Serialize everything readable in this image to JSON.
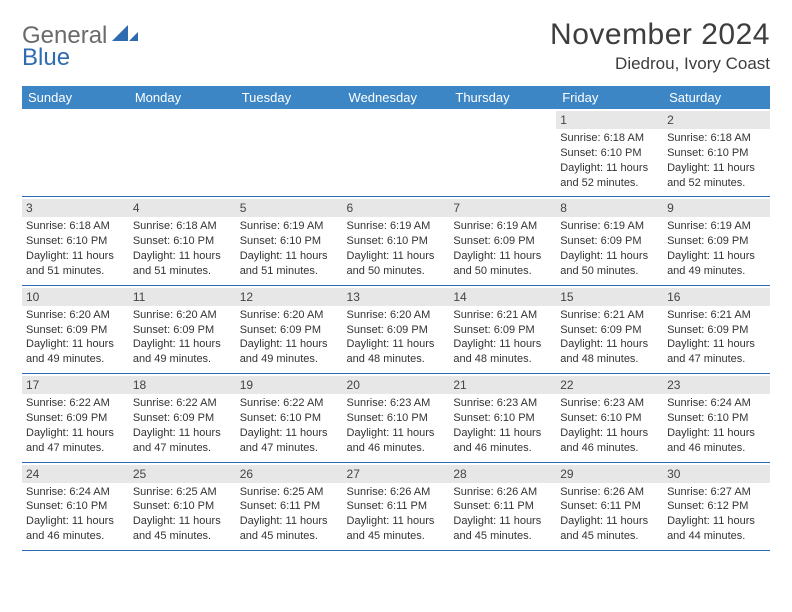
{
  "logo": {
    "line1": "General",
    "line2": "Blue",
    "mark_color": "#2f6bb1"
  },
  "title": "November 2024",
  "location": "Diedrou, Ivory Coast",
  "colors": {
    "header_bg": "#3d86c6",
    "header_text": "#ffffff",
    "daynum_bg": "#e7e7e7",
    "row_border": "#2f6bb1",
    "body_text": "#333333",
    "logo_general": "#6a6a6a",
    "logo_blue": "#2f6bb1"
  },
  "weekdays": [
    "Sunday",
    "Monday",
    "Tuesday",
    "Wednesday",
    "Thursday",
    "Friday",
    "Saturday"
  ],
  "weeks": [
    [
      null,
      null,
      null,
      null,
      null,
      {
        "n": "1",
        "sunrise": "6:18 AM",
        "sunset": "6:10 PM",
        "daylight": "11 hours and 52 minutes."
      },
      {
        "n": "2",
        "sunrise": "6:18 AM",
        "sunset": "6:10 PM",
        "daylight": "11 hours and 52 minutes."
      }
    ],
    [
      {
        "n": "3",
        "sunrise": "6:18 AM",
        "sunset": "6:10 PM",
        "daylight": "11 hours and 51 minutes."
      },
      {
        "n": "4",
        "sunrise": "6:18 AM",
        "sunset": "6:10 PM",
        "daylight": "11 hours and 51 minutes."
      },
      {
        "n": "5",
        "sunrise": "6:19 AM",
        "sunset": "6:10 PM",
        "daylight": "11 hours and 51 minutes."
      },
      {
        "n": "6",
        "sunrise": "6:19 AM",
        "sunset": "6:10 PM",
        "daylight": "11 hours and 50 minutes."
      },
      {
        "n": "7",
        "sunrise": "6:19 AM",
        "sunset": "6:09 PM",
        "daylight": "11 hours and 50 minutes."
      },
      {
        "n": "8",
        "sunrise": "6:19 AM",
        "sunset": "6:09 PM",
        "daylight": "11 hours and 50 minutes."
      },
      {
        "n": "9",
        "sunrise": "6:19 AM",
        "sunset": "6:09 PM",
        "daylight": "11 hours and 49 minutes."
      }
    ],
    [
      {
        "n": "10",
        "sunrise": "6:20 AM",
        "sunset": "6:09 PM",
        "daylight": "11 hours and 49 minutes."
      },
      {
        "n": "11",
        "sunrise": "6:20 AM",
        "sunset": "6:09 PM",
        "daylight": "11 hours and 49 minutes."
      },
      {
        "n": "12",
        "sunrise": "6:20 AM",
        "sunset": "6:09 PM",
        "daylight": "11 hours and 49 minutes."
      },
      {
        "n": "13",
        "sunrise": "6:20 AM",
        "sunset": "6:09 PM",
        "daylight": "11 hours and 48 minutes."
      },
      {
        "n": "14",
        "sunrise": "6:21 AM",
        "sunset": "6:09 PM",
        "daylight": "11 hours and 48 minutes."
      },
      {
        "n": "15",
        "sunrise": "6:21 AM",
        "sunset": "6:09 PM",
        "daylight": "11 hours and 48 minutes."
      },
      {
        "n": "16",
        "sunrise": "6:21 AM",
        "sunset": "6:09 PM",
        "daylight": "11 hours and 47 minutes."
      }
    ],
    [
      {
        "n": "17",
        "sunrise": "6:22 AM",
        "sunset": "6:09 PM",
        "daylight": "11 hours and 47 minutes."
      },
      {
        "n": "18",
        "sunrise": "6:22 AM",
        "sunset": "6:09 PM",
        "daylight": "11 hours and 47 minutes."
      },
      {
        "n": "19",
        "sunrise": "6:22 AM",
        "sunset": "6:10 PM",
        "daylight": "11 hours and 47 minutes."
      },
      {
        "n": "20",
        "sunrise": "6:23 AM",
        "sunset": "6:10 PM",
        "daylight": "11 hours and 46 minutes."
      },
      {
        "n": "21",
        "sunrise": "6:23 AM",
        "sunset": "6:10 PM",
        "daylight": "11 hours and 46 minutes."
      },
      {
        "n": "22",
        "sunrise": "6:23 AM",
        "sunset": "6:10 PM",
        "daylight": "11 hours and 46 minutes."
      },
      {
        "n": "23",
        "sunrise": "6:24 AM",
        "sunset": "6:10 PM",
        "daylight": "11 hours and 46 minutes."
      }
    ],
    [
      {
        "n": "24",
        "sunrise": "6:24 AM",
        "sunset": "6:10 PM",
        "daylight": "11 hours and 46 minutes."
      },
      {
        "n": "25",
        "sunrise": "6:25 AM",
        "sunset": "6:10 PM",
        "daylight": "11 hours and 45 minutes."
      },
      {
        "n": "26",
        "sunrise": "6:25 AM",
        "sunset": "6:11 PM",
        "daylight": "11 hours and 45 minutes."
      },
      {
        "n": "27",
        "sunrise": "6:26 AM",
        "sunset": "6:11 PM",
        "daylight": "11 hours and 45 minutes."
      },
      {
        "n": "28",
        "sunrise": "6:26 AM",
        "sunset": "6:11 PM",
        "daylight": "11 hours and 45 minutes."
      },
      {
        "n": "29",
        "sunrise": "6:26 AM",
        "sunset": "6:11 PM",
        "daylight": "11 hours and 45 minutes."
      },
      {
        "n": "30",
        "sunrise": "6:27 AM",
        "sunset": "6:12 PM",
        "daylight": "11 hours and 44 minutes."
      }
    ]
  ],
  "labels": {
    "sunrise": "Sunrise: ",
    "sunset": "Sunset: ",
    "daylight": "Daylight: "
  }
}
